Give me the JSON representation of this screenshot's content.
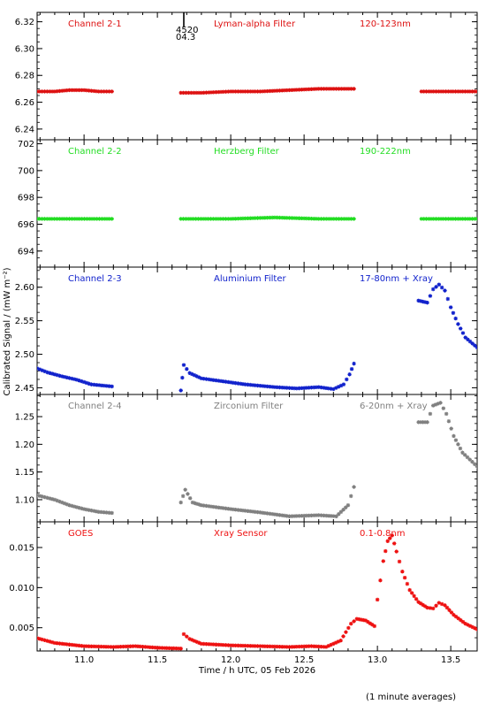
{
  "figure": {
    "ylabel": "Calibrated Signal / (mW m⁻²)",
    "xlabel": "Time / h UTC, 05 Feb 2026",
    "note": "(1 minute averages)",
    "xticks": [
      11.0,
      11.5,
      12.0,
      12.5,
      13.0,
      13.5
    ],
    "xlim": [
      10.68,
      13.68
    ],
    "marker_labels": [
      "4520",
      "04.3"
    ]
  },
  "chart_data": [
    {
      "type": "scatter",
      "channel": "Channel 2-1",
      "filter": "Lyman-alpha Filter",
      "band": "120-123nm",
      "color": "#dd1111",
      "ylim": [
        6.232,
        6.327
      ],
      "yticks": [
        "6.24",
        "6.26",
        "6.28",
        "6.30",
        "6.32"
      ],
      "series": [
        {
          "x": [
            10.68,
            10.8,
            10.9,
            11.0,
            11.1,
            11.19
          ],
          "y": [
            6.268,
            6.268,
            6.269,
            6.269,
            6.268,
            6.268
          ]
        },
        {
          "x": [
            11.66,
            11.8,
            12.0,
            12.2,
            12.4,
            12.6,
            12.84
          ],
          "y": [
            6.267,
            6.267,
            6.268,
            6.268,
            6.269,
            6.27,
            6.27
          ]
        },
        {
          "x": [
            13.3,
            13.5,
            13.68
          ],
          "y": [
            6.268,
            6.268,
            6.268
          ]
        }
      ]
    },
    {
      "type": "scatter",
      "channel": "Channel 2-2",
      "filter": "Herzberg Filter",
      "band": "190-222nm",
      "color": "#22dd22",
      "ylim": [
        692.8,
        702.3
      ],
      "yticks": [
        "694",
        "696",
        "698",
        "700",
        "702"
      ],
      "series": [
        {
          "x": [
            10.68,
            10.9,
            11.19
          ],
          "y": [
            696.4,
            696.4,
            696.4
          ]
        },
        {
          "x": [
            11.66,
            12.0,
            12.3,
            12.6,
            12.84
          ],
          "y": [
            696.4,
            696.4,
            696.5,
            696.4,
            696.4
          ]
        },
        {
          "x": [
            13.3,
            13.5,
            13.68
          ],
          "y": [
            696.4,
            696.4,
            696.4
          ]
        }
      ]
    },
    {
      "type": "scatter",
      "channel": "Channel 2-3",
      "filter": "Aluminium Filter",
      "band": "17-80nm + Xray",
      "color": "#1122cc",
      "ylim": [
        2.44,
        2.63
      ],
      "yticks": [
        "2.45",
        "2.50",
        "2.55",
        "2.60"
      ],
      "series": [
        {
          "x": [
            10.68,
            10.75,
            10.85,
            10.95,
            11.05,
            11.19
          ],
          "y": [
            2.479,
            2.473,
            2.467,
            2.462,
            2.455,
            2.452
          ]
        },
        {
          "x": [
            11.66,
            11.68,
            11.72,
            11.8,
            11.9,
            12.0,
            12.1,
            12.3,
            12.45,
            12.6,
            12.7,
            12.77,
            12.81,
            12.84
          ],
          "y": [
            2.446,
            2.484,
            2.472,
            2.464,
            2.461,
            2.458,
            2.455,
            2.451,
            2.449,
            2.451,
            2.448,
            2.455,
            2.47,
            2.486
          ]
        },
        {
          "x": [
            13.28,
            13.34,
            13.38,
            13.42,
            13.46,
            13.5,
            13.55,
            13.6,
            13.68
          ],
          "y": [
            2.58,
            2.577,
            2.597,
            2.604,
            2.595,
            2.57,
            2.545,
            2.525,
            2.51
          ]
        }
      ]
    },
    {
      "type": "scatter",
      "channel": "Channel 2-4",
      "filter": "Zirconium Filter",
      "band": "6-20nm + Xray",
      "color": "#808080",
      "ylim": [
        1.06,
        1.29
      ],
      "yticks": [
        "1.10",
        "1.15",
        "1.20",
        "1.25"
      ],
      "series": [
        {
          "x": [
            10.68,
            10.8,
            10.9,
            11.0,
            11.1,
            11.19
          ],
          "y": [
            1.108,
            1.1,
            1.09,
            1.083,
            1.078,
            1.076
          ]
        },
        {
          "x": [
            11.66,
            11.69,
            11.74,
            11.8,
            12.0,
            12.2,
            12.4,
            12.6,
            12.72,
            12.8,
            12.84
          ],
          "y": [
            1.095,
            1.118,
            1.095,
            1.09,
            1.083,
            1.077,
            1.07,
            1.072,
            1.07,
            1.09,
            1.123
          ]
        },
        {
          "x": [
            13.28,
            13.34,
            13.38,
            13.43,
            13.47,
            13.52,
            13.58,
            13.68
          ],
          "y": [
            1.24,
            1.24,
            1.27,
            1.275,
            1.255,
            1.215,
            1.185,
            1.16
          ]
        }
      ]
    },
    {
      "type": "scatter",
      "channel": "GOES",
      "filter": "Xray Sensor",
      "band": "0.1-0.8nm",
      "color": "#ee1111",
      "ylim": [
        0.0021,
        0.0182
      ],
      "yticks": [
        "0.005",
        "0.010",
        "0.015"
      ],
      "series": [
        {
          "x": [
            10.68,
            10.8,
            11.0,
            11.2,
            11.35,
            11.5,
            11.66
          ],
          "y": [
            0.0037,
            0.0031,
            0.0027,
            0.0026,
            0.0027,
            0.0025,
            0.0024
          ]
        },
        {
          "x": [
            11.68,
            11.72,
            11.8,
            11.9,
            12.0,
            12.2,
            12.4,
            12.55,
            12.65,
            12.75,
            12.82,
            12.86,
            12.92,
            12.98
          ],
          "y": [
            0.0042,
            0.0036,
            0.003,
            0.0029,
            0.0028,
            0.0027,
            0.0026,
            0.0027,
            0.0026,
            0.0034,
            0.0055,
            0.0061,
            0.0059,
            0.0052
          ]
        },
        {
          "x": [
            13.0,
            13.04,
            13.07,
            13.1,
            13.13,
            13.17,
            13.22,
            13.28,
            13.34,
            13.38,
            13.42,
            13.46,
            13.52,
            13.6,
            13.68
          ],
          "y": [
            0.0085,
            0.0133,
            0.0158,
            0.0165,
            0.0145,
            0.012,
            0.0097,
            0.0082,
            0.0075,
            0.0074,
            0.0081,
            0.0078,
            0.0066,
            0.0055,
            0.0048
          ]
        }
      ]
    }
  ]
}
